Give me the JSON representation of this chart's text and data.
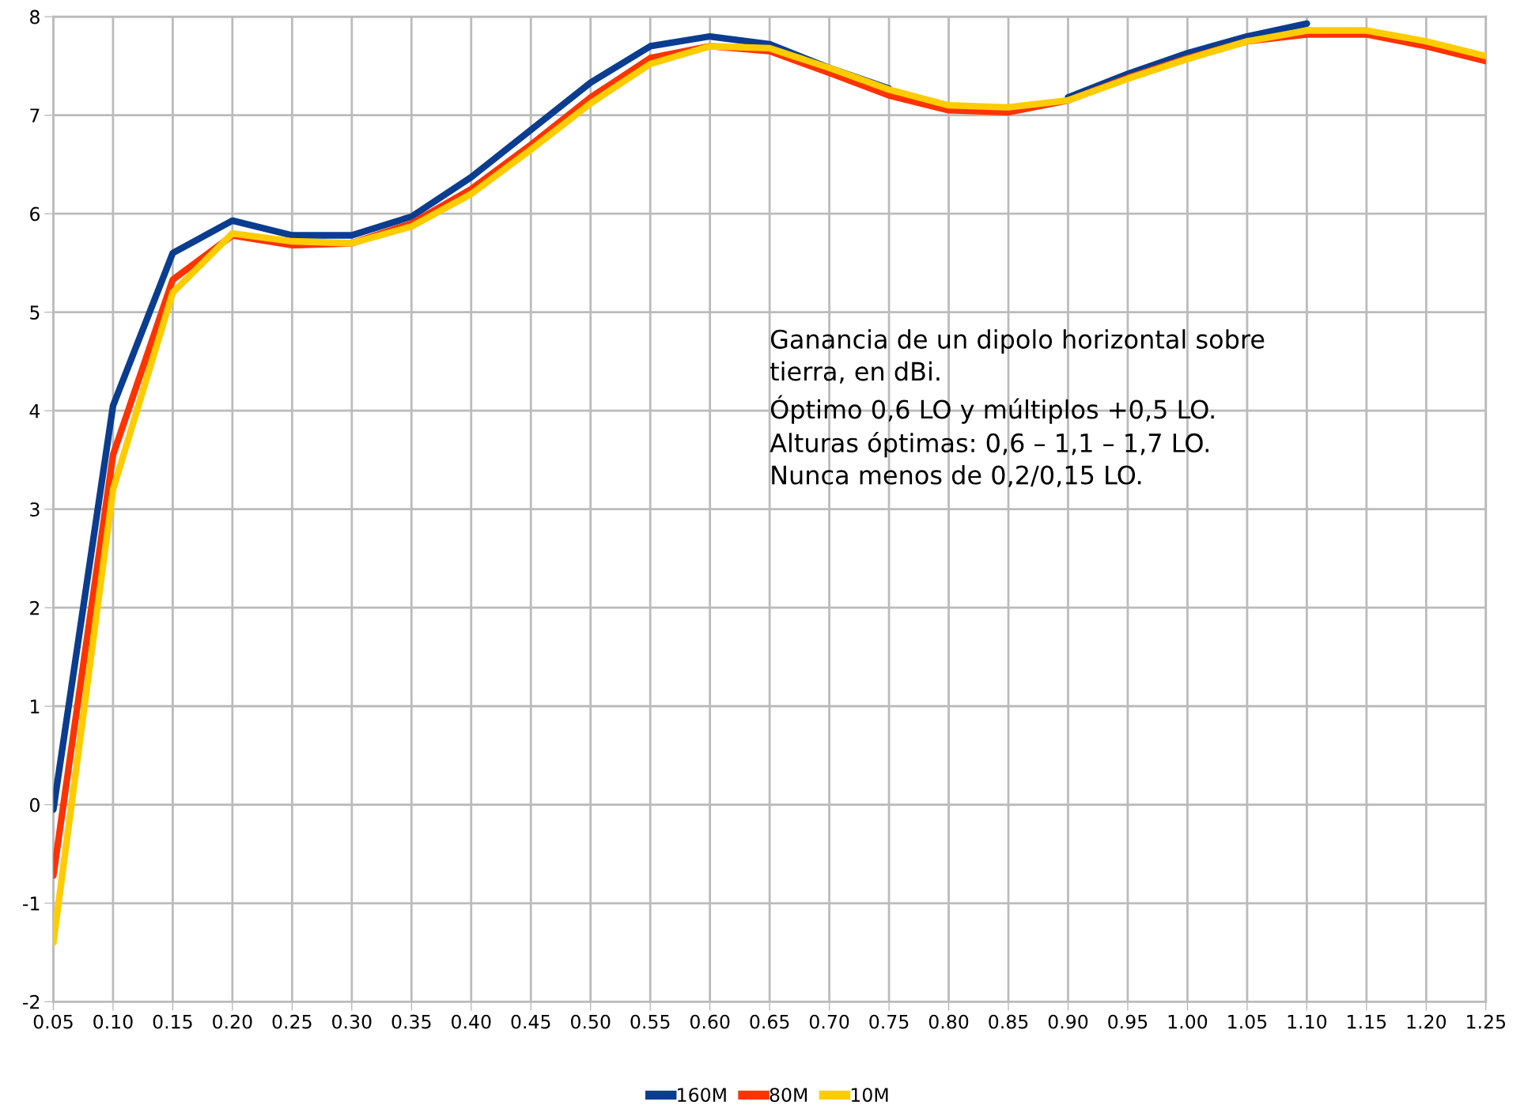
{
  "chart_data": {
    "type": "line",
    "categories": [
      "0.05",
      "0.10",
      "0.15",
      "0.20",
      "0.25",
      "0.30",
      "0.35",
      "0.40",
      "0.45",
      "0.50",
      "0.55",
      "0.60",
      "0.65",
      "0.70",
      "0.75",
      "0.80",
      "0.85",
      "0.90",
      "0.95",
      "1.00",
      "1.05",
      "1.10",
      "1.15",
      "1.20",
      "1.25"
    ],
    "series": [
      {
        "name": "160M",
        "color": "#0a3d8f",
        "values": [
          -0.05,
          4.05,
          5.6,
          5.93,
          5.78,
          5.78,
          5.97,
          6.37,
          6.85,
          7.33,
          7.7,
          7.8,
          7.72,
          7.48,
          7.27,
          null,
          null,
          7.18,
          7.42,
          7.63,
          7.8,
          7.93,
          null,
          null,
          null
        ]
      },
      {
        "name": "80M",
        "color": "#ff3300",
        "values": [
          -0.72,
          3.55,
          5.33,
          5.78,
          5.68,
          5.7,
          5.9,
          6.25,
          6.7,
          7.18,
          7.58,
          7.7,
          7.65,
          7.43,
          7.2,
          7.05,
          7.03,
          7.15,
          7.38,
          7.58,
          7.75,
          7.82,
          7.82,
          7.7,
          7.55
        ]
      },
      {
        "name": "10M",
        "color": "#ffcc00",
        "values": [
          -1.4,
          3.2,
          5.2,
          5.8,
          5.72,
          5.7,
          5.87,
          6.2,
          6.65,
          7.12,
          7.52,
          7.7,
          7.68,
          7.48,
          7.26,
          7.1,
          7.08,
          7.15,
          7.37,
          7.57,
          7.75,
          7.86,
          7.86,
          7.75,
          7.6
        ]
      }
    ],
    "ylim": [
      -2,
      8
    ],
    "yticks": [
      -2,
      -1,
      0,
      1,
      2,
      3,
      4,
      5,
      6,
      7,
      8
    ],
    "grid": true,
    "legend": "bottom",
    "marker": "none",
    "line_style": "solid",
    "annotations": [
      "Ganancia de un dipolo horizontal sobre\ntierra, en dBi.\nÓptimo 0,6 LO y múltiplos +0,5 LO.\nAlturas óptimas: 0,6 – 1,1 – 1,7 LO.\nNunca menos de 0,2/0,15 LO."
    ]
  }
}
